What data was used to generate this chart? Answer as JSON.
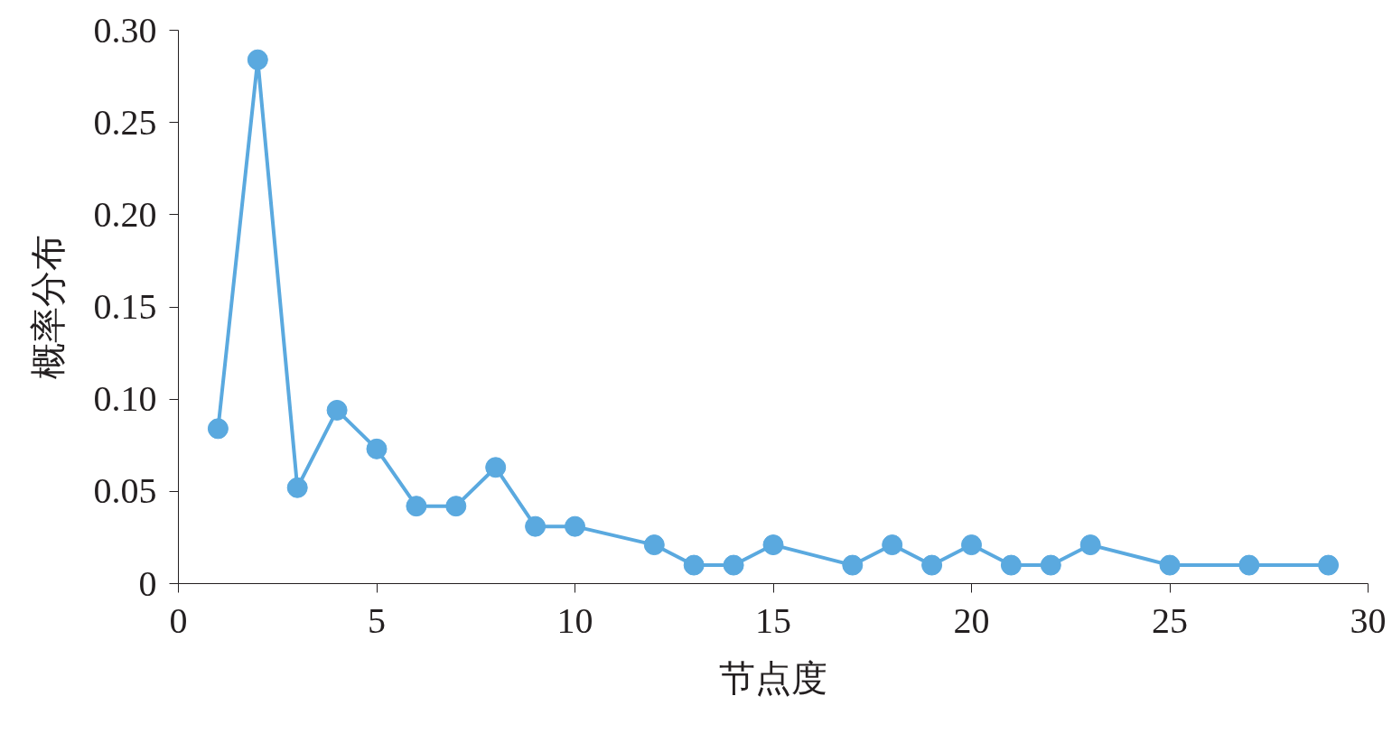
{
  "chart_data": {
    "type": "line",
    "xlabel": "节点度",
    "ylabel": "概率分布",
    "x": [
      1,
      2,
      3,
      4,
      5,
      6,
      7,
      8,
      9,
      10,
      12,
      13,
      14,
      15,
      17,
      18,
      19,
      20,
      21,
      22,
      23,
      25,
      27,
      29
    ],
    "series": [
      {
        "color": "#5aa9df",
        "values": [
          0.084,
          0.284,
          0.052,
          0.094,
          0.073,
          0.042,
          0.042,
          0.063,
          0.031,
          0.031,
          0.021,
          0.01,
          0.01,
          0.021,
          0.01,
          0.021,
          0.01,
          0.021,
          0.01,
          0.01,
          0.021,
          0.01,
          0.01,
          0.01
        ]
      }
    ],
    "xlim": [
      0,
      30
    ],
    "xticks": [
      0,
      5,
      10,
      15,
      20,
      25,
      30
    ],
    "ylim": [
      0,
      0.3
    ],
    "yticks": [
      {
        "value": 0,
        "label": "0"
      },
      {
        "value": 0.05,
        "label": "0.05"
      },
      {
        "value": 0.1,
        "label": "0.10"
      },
      {
        "value": 0.15,
        "label": "0.15"
      },
      {
        "value": 0.2,
        "label": "0.20"
      },
      {
        "value": 0.25,
        "label": "0.25"
      },
      {
        "value": 0.3,
        "label": "0.30"
      }
    ],
    "grid": false,
    "marker": "circle",
    "line_style": "solid"
  }
}
